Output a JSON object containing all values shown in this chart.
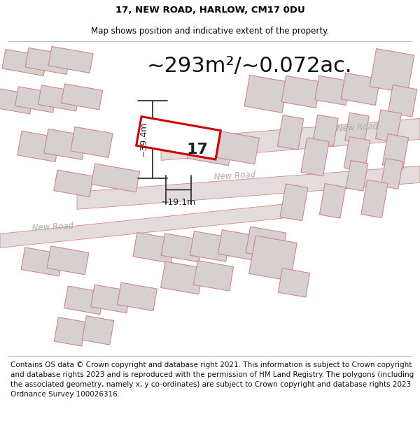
{
  "title": "17, NEW ROAD, HARLOW, CM17 0DU",
  "subtitle": "Map shows position and indicative extent of the property.",
  "area_text": "~293m²/~0.072ac.",
  "width_text": "~19.1m",
  "height_text": "~39.4m",
  "label_17": "17",
  "road_label_mid": "New Road",
  "road_label_right": "New Road",
  "road_label_left": "New Road",
  "footer": "Contains OS data © Crown copyright and database right 2021. This information is subject to Crown copyright and database rights 2023 and is reproduced with the permission of HM Land Registry. The polygons (including the associated geometry, namely x, y co-ordinates) are subject to Crown copyright and database rights 2023 Ordnance Survey 100026316.",
  "map_bg": "#f0eded",
  "road_fill": "#e2dcdc",
  "building_fill": "#d6d0d0",
  "building_edge": "#d08888",
  "highlight_color": "#cc0000",
  "road_edge": "#d08888",
  "dim_line_color": "#333333",
  "title_fontsize": 9.5,
  "subtitle_fontsize": 8.5,
  "area_fontsize": 22,
  "footer_fontsize": 7.5,
  "label_fontsize": 16,
  "dim_fontsize": 9
}
